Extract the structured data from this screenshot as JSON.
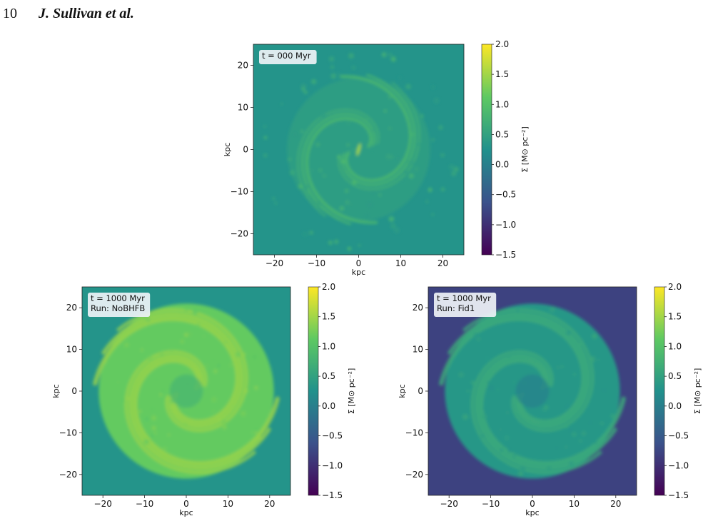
{
  "header": {
    "page_number": "10",
    "authors": "J. Sullivan et al."
  },
  "colormap": {
    "name": "viridis",
    "stops": [
      "#440154",
      "#3b528b",
      "#21918c",
      "#5ec962",
      "#fde725"
    ]
  },
  "chart_data": [
    {
      "type": "heatmap",
      "label_lines": [
        "t = 000 Myr"
      ],
      "xlabel": "kpc",
      "ylabel": "kpc",
      "xlim": [
        -25,
        25
      ],
      "ylim": [
        -25,
        25
      ],
      "xticks": [
        "−20",
        "−10",
        "0",
        "10",
        "20"
      ],
      "yticks": [
        "20",
        "10",
        "0",
        "−10",
        "−20"
      ],
      "colorbar": {
        "label": "Σ [M⊙ pc⁻²]",
        "range": [
          -1.5,
          2.0
        ],
        "ticks": [
          "2.0",
          "1.5",
          "1.0",
          "0.5",
          "0.0",
          "−0.5",
          "−1.0",
          "−1.5"
        ]
      },
      "background_level": 0.3,
      "disk_level": 0.55,
      "arm_level": 0.95
    },
    {
      "type": "heatmap",
      "label_lines": [
        "t = 1000 Myr",
        "Run: NoBHFB"
      ],
      "xlabel": "kpc",
      "ylabel": "kpc",
      "xlim": [
        -25,
        25
      ],
      "ylim": [
        -25,
        25
      ],
      "xticks": [
        "−20",
        "−10",
        "0",
        "10",
        "20"
      ],
      "yticks": [
        "20",
        "10",
        "0",
        "−10",
        "−20"
      ],
      "colorbar": {
        "label": "Σ [M⊙ pc⁻²]",
        "range": [
          -1.5,
          2.0
        ],
        "ticks": [
          "2.0",
          "1.5",
          "1.0",
          "0.5",
          "0.0",
          "−0.5",
          "−1.0",
          "−1.5"
        ]
      },
      "background_level": 0.3,
      "disk_level": 1.15,
      "arm_level": 1.45
    },
    {
      "type": "heatmap",
      "label_lines": [
        "t = 1000 Myr",
        "Run: Fid1"
      ],
      "xlabel": "kpc",
      "ylabel": "kpc",
      "xlim": [
        -25,
        25
      ],
      "ylim": [
        -25,
        25
      ],
      "xticks": [
        "−20",
        "−10",
        "0",
        "10",
        "20"
      ],
      "yticks": [
        "20",
        "10",
        "0",
        "−10",
        "−20"
      ],
      "colorbar": {
        "label": "Σ [M⊙ pc⁻²]",
        "range": [
          -1.5,
          2.0
        ],
        "ticks": [
          "2.0",
          "1.5",
          "1.0",
          "0.5",
          "0.0",
          "−0.5",
          "−1.0",
          "−1.5"
        ]
      },
      "background_level": -0.8,
      "disk_level": 0.35,
      "arm_level": 0.65
    }
  ]
}
